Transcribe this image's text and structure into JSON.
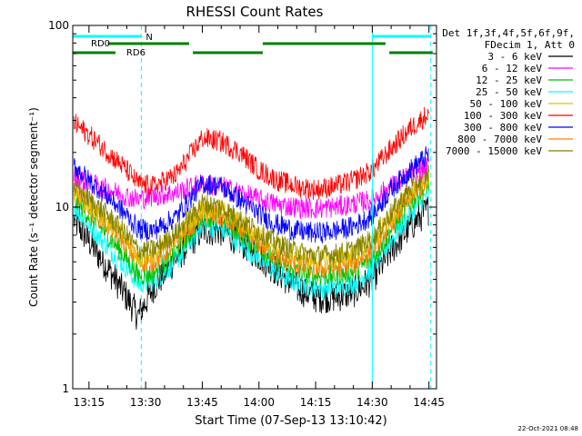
{
  "chart_data": {
    "type": "line",
    "title": "RHESSI Count Rates",
    "xlabel": "Start Time (07-Sep-13 13:10:42)",
    "ylabel": "Count Rate (s⁻¹ detector segment⁻¹)",
    "yscale": "log",
    "ylim": [
      1,
      100
    ],
    "xlim": [
      "13:10:42",
      "14:47:00"
    ],
    "x_ticks": [
      "13:15",
      "13:30",
      "13:45",
      "14:00",
      "14:15",
      "14:30",
      "14:45"
    ],
    "y_ticks": [
      "1",
      "10",
      "100"
    ],
    "grid": false,
    "legend_position": "right",
    "legend_header": [
      "Det 1f,3f,4f,5f,6f,9f,",
      "FDecim 1, Att 0"
    ],
    "x": [
      "13:11",
      "13:15",
      "13:20",
      "13:25",
      "13:28",
      "13:32",
      "13:38",
      "13:45",
      "13:50",
      "13:55",
      "14:00",
      "14:05",
      "14:10",
      "14:15",
      "14:20",
      "14:25",
      "14:30",
      "14:35",
      "14:40",
      "14:45"
    ],
    "series": [
      {
        "name": "3 - 6 keV",
        "color": "#000000",
        "values": [
          8.5,
          6.5,
          4.6,
          3.2,
          2.5,
          3.6,
          5.2,
          7.5,
          7.4,
          6.5,
          5.4,
          4.4,
          3.6,
          3.2,
          3.2,
          3.4,
          4.0,
          5.8,
          7.8,
          9.8
        ]
      },
      {
        "name": "6 - 12 keV",
        "color": "#ff00ff",
        "values": [
          15,
          13.5,
          12.5,
          11.5,
          11,
          11.5,
          12,
          13.5,
          13,
          12,
          11,
          10.3,
          10,
          9.8,
          10,
          10.4,
          11,
          13,
          15,
          17
        ]
      },
      {
        "name": "12 - 25 keV",
        "color": "#00c000",
        "values": [
          11,
          9,
          7,
          5.2,
          4.2,
          4.3,
          5.6,
          9,
          8.6,
          7.2,
          6,
          5,
          4.4,
          4.2,
          4.2,
          4.4,
          5.2,
          7.5,
          10.5,
          13.5
        ]
      },
      {
        "name": "25 - 50 keV",
        "color": "#00ffff",
        "values": [
          10,
          8,
          6,
          4.6,
          3.8,
          3.9,
          5,
          8,
          7.6,
          6.3,
          5.2,
          4.3,
          3.8,
          3.6,
          3.6,
          3.8,
          4.6,
          6.6,
          9.2,
          12
        ]
      },
      {
        "name": "50 - 100 keV",
        "color": "#e0c000",
        "values": [
          12,
          10.5,
          8.5,
          6.5,
          5.3,
          5.4,
          6.8,
          10,
          9.6,
          8.2,
          7,
          6,
          5.4,
          5.1,
          5.2,
          5.5,
          6.4,
          8.8,
          12,
          15
        ]
      },
      {
        "name": "100 - 300 keV",
        "color": "#ff0000",
        "values": [
          29,
          25,
          20,
          16,
          13.5,
          13,
          15,
          24,
          23,
          20,
          16,
          14,
          13,
          12.5,
          13,
          14,
          16,
          21,
          27,
          33
        ]
      },
      {
        "name": "300 - 800 keV",
        "color": "#0000ff",
        "values": [
          17,
          14,
          11.5,
          9,
          7.6,
          7.4,
          8.8,
          13.5,
          13,
          11,
          9.2,
          8,
          7.4,
          7.2,
          7.4,
          7.8,
          9,
          12.5,
          16,
          19.5
        ]
      },
      {
        "name": "800 - 7000 keV",
        "color": "#ff8000",
        "values": [
          12.5,
          10,
          8,
          6.2,
          5,
          5,
          6.3,
          9.2,
          8.8,
          7.5,
          6.3,
          5.3,
          4.8,
          4.6,
          4.6,
          4.9,
          5.8,
          8.2,
          11.2,
          14
        ]
      },
      {
        "name": "7000 - 15000 keV",
        "color": "#808000",
        "values": [
          13,
          11,
          9,
          7,
          5.8,
          5.8,
          7.2,
          10.5,
          10,
          8.6,
          7.3,
          6.3,
          5.7,
          5.4,
          5.5,
          5.8,
          6.7,
          9.3,
          12.5,
          15.5
        ]
      }
    ],
    "annotations": {
      "boundary_color": "#00ffff",
      "solid_boundaries": [
        "13:10:42",
        "14:30:00"
      ],
      "dashed_boundaries": [
        "13:28:50",
        "14:45:30"
      ],
      "night_bars": [
        [
          "13:10:42",
          "13:28:50"
        ],
        [
          "14:30:00",
          "14:45:30"
        ]
      ],
      "night_label": "N",
      "rd0_label": "RD0",
      "rd0_color": "#008000",
      "rd0_bars": [
        [
          "13:20:00",
          "13:41:30"
        ],
        [
          "14:01:00",
          "14:33:30"
        ]
      ],
      "rd6_label": "RD6",
      "rd6_color": "#008000",
      "rd6_bars": [
        [
          "13:10:42",
          "13:22:00"
        ],
        [
          "13:42:30",
          "14:01:00"
        ],
        [
          "14:34:30",
          "14:46:00"
        ]
      ]
    }
  },
  "footer": {
    "timestamp": "22-Oct-2021 08:48"
  }
}
